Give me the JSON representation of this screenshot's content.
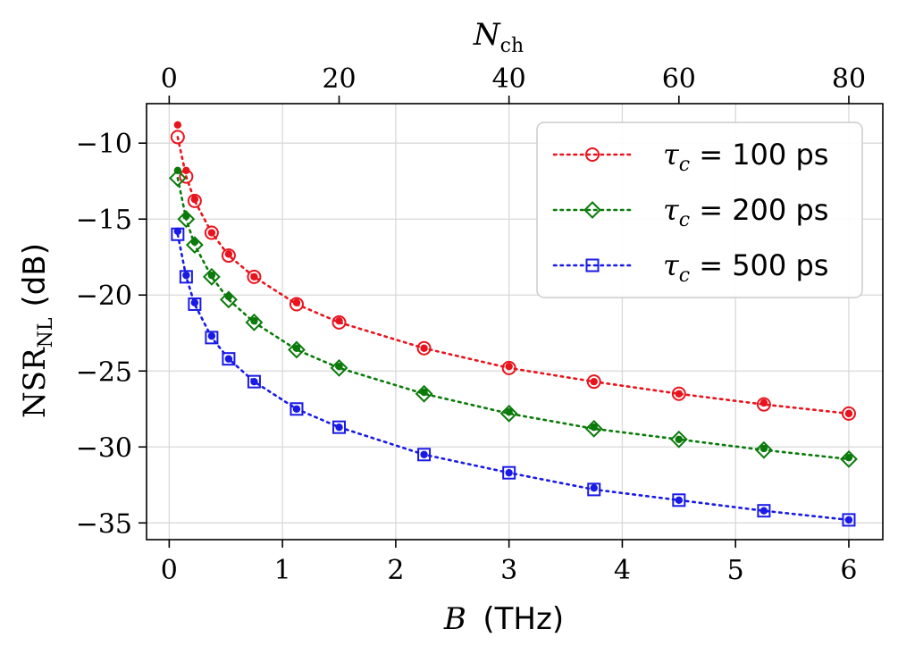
{
  "chart_data": {
    "type": "line",
    "xlabel": "B (THz)",
    "xlabel_parts": {
      "symbol": "B",
      "unit": "(THz)"
    },
    "ylabel": "NSR_NL (dB)",
    "ylabel_parts": {
      "main": "NSR",
      "sub": "NL",
      "unit": "(dB)"
    },
    "x2label": "N_ch",
    "x2label_parts": {
      "main": "N",
      "sub": "ch"
    },
    "xlim": [
      -0.2,
      6.3
    ],
    "ylim": [
      -36.1,
      -7.4
    ],
    "x2_per_x": 13.333333,
    "xticks": [
      0,
      1,
      2,
      3,
      4,
      5,
      6
    ],
    "xtick_labels": [
      "0",
      "1",
      "2",
      "3",
      "4",
      "5",
      "6"
    ],
    "yticks": [
      -10,
      -15,
      -20,
      -25,
      -30,
      -35
    ],
    "ytick_labels": [
      "−10",
      "−15",
      "−20",
      "−25",
      "−30",
      "−35"
    ],
    "x2ticks": [
      0,
      20,
      40,
      60,
      80
    ],
    "x2tick_labels": [
      "0",
      "20",
      "40",
      "60",
      "80"
    ],
    "grid": true,
    "legend_position": "top-right",
    "series": [
      {
        "name": "τc = 100 ps",
        "label_symbol": "τ",
        "label_sub": "c",
        "label_value": " = 100 ps",
        "color": "#e8141d",
        "marker": "circle",
        "x": [
          0.075,
          0.15,
          0.225,
          0.375,
          0.525,
          0.75,
          1.125,
          1.5,
          2.25,
          3.0,
          3.75,
          4.5,
          5.25,
          6.0
        ],
        "y": [
          -9.6,
          -12.2,
          -13.8,
          -15.9,
          -17.4,
          -18.8,
          -20.6,
          -21.8,
          -23.5,
          -24.8,
          -25.7,
          -26.5,
          -27.2,
          -27.8
        ],
        "dots_x": [
          0.075,
          0.15,
          0.225,
          0.375,
          0.525,
          0.75,
          1.125,
          1.5,
          2.25,
          3.0,
          3.75,
          4.5,
          5.25,
          6.0
        ],
        "dots_y": [
          -8.8,
          -11.8,
          -13.7,
          -15.9,
          -17.3,
          -18.8,
          -20.5,
          -21.7,
          -23.5,
          -24.7,
          -25.7,
          -26.5,
          -27.1,
          -27.8
        ]
      },
      {
        "name": "τc = 200 ps",
        "label_symbol": "τ",
        "label_sub": "c",
        "label_value": " = 200 ps",
        "color": "#0a7a0a",
        "marker": "diamond",
        "x": [
          0.075,
          0.15,
          0.225,
          0.375,
          0.525,
          0.75,
          1.125,
          1.5,
          2.25,
          3.0,
          3.75,
          4.5,
          5.25,
          6.0
        ],
        "y": [
          -12.3,
          -15.0,
          -16.7,
          -18.8,
          -20.3,
          -21.8,
          -23.6,
          -24.8,
          -26.5,
          -27.8,
          -28.8,
          -29.5,
          -30.2,
          -30.8
        ],
        "dots_x": [
          0.075,
          0.15,
          0.225,
          0.375,
          0.525,
          0.75,
          1.125,
          1.5,
          2.25,
          3.0,
          3.75,
          4.5,
          5.25,
          6.0
        ],
        "dots_y": [
          -11.8,
          -14.8,
          -16.5,
          -18.7,
          -20.1,
          -21.7,
          -23.5,
          -24.7,
          -26.4,
          -27.7,
          -28.7,
          -29.5,
          -30.1,
          -30.7
        ]
      },
      {
        "name": "τc = 500 ps",
        "label_symbol": "τ",
        "label_sub": "c",
        "label_value": " = 500 ps",
        "color": "#1a1ae6",
        "marker": "square",
        "x": [
          0.075,
          0.15,
          0.225,
          0.375,
          0.525,
          0.75,
          1.125,
          1.5,
          2.25,
          3.0,
          3.75,
          4.5,
          5.25,
          6.0
        ],
        "y": [
          -16.0,
          -18.8,
          -20.6,
          -22.8,
          -24.2,
          -25.7,
          -27.5,
          -28.7,
          -30.5,
          -31.7,
          -32.8,
          -33.5,
          -34.2,
          -34.8
        ],
        "dots_x": [
          0.075,
          0.15,
          0.225,
          0.375,
          0.525,
          0.75,
          1.125,
          1.5,
          2.25,
          3.0,
          3.75,
          4.5,
          5.25,
          6.0
        ],
        "dots_y": [
          -15.8,
          -18.7,
          -20.5,
          -22.7,
          -24.2,
          -25.7,
          -27.5,
          -28.7,
          -30.5,
          -31.7,
          -32.7,
          -33.5,
          -34.2,
          -34.8
        ]
      }
    ]
  }
}
